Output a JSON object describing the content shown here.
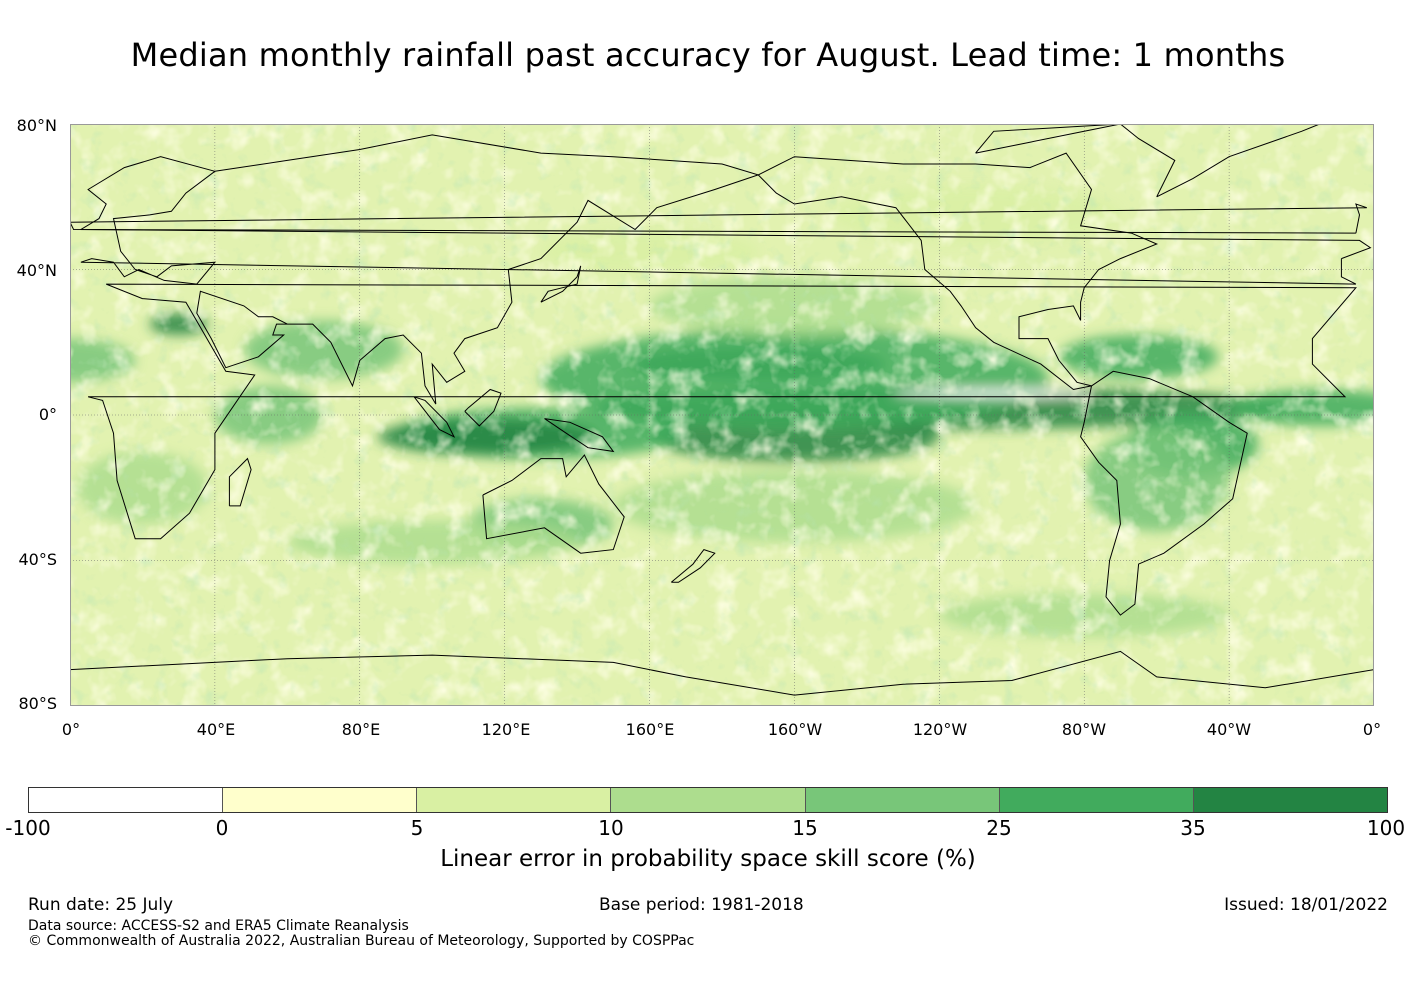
{
  "title": "Median monthly rainfall past accuracy for August. Lead time: 1 months",
  "map": {
    "lat_labels": [
      "80°N",
      "40°N",
      "0°",
      "40°S",
      "80°S"
    ],
    "lon_labels": [
      "0°",
      "40°E",
      "80°E",
      "120°E",
      "160°E",
      "160°W",
      "120°W",
      "80°W",
      "40°W",
      "0°"
    ],
    "land_color": "#000000",
    "band_colors": {
      "base": "#e2f2b0",
      "very_low": "#ffffcc",
      "low": "#d9f0a3",
      "mid": "#addd8e",
      "high": "#78c679",
      "very_high": "#41ab5d",
      "max": "#238443",
      "negative": "#ffffff"
    }
  },
  "colorbar": {
    "ticks": [
      "-100",
      "0",
      "5",
      "10",
      "15",
      "25",
      "35",
      "100"
    ],
    "colors": [
      "#ffffff",
      "#ffffcc",
      "#d9f0a3",
      "#addd8e",
      "#78c679",
      "#41ab5d",
      "#238443"
    ],
    "label": "Linear error in probability space skill score (%)"
  },
  "footer": {
    "run_date": "Run date: 25 July",
    "base_period": "Base period: 1981-2018",
    "issued": "Issued: 18/01/2022",
    "data_source": "Data source: ACCESS-S2 and ERA5 Climate Reanalysis",
    "copyright": "© Commonwealth of Australia 2022, Australian Bureau of Meteorology, Supported by COSPPac"
  }
}
